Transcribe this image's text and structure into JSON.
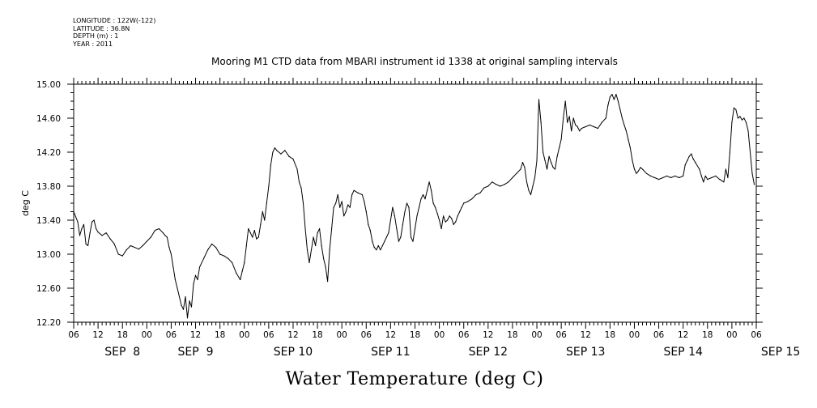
{
  "meta": {
    "longitude": "LONGITUDE : 122W(-122)",
    "latitude": "LATITUDE : 36.8N",
    "depth": "DEPTH (m) : 1",
    "year": "YEAR : 2011"
  },
  "chart_data": {
    "type": "line",
    "title": "Mooring M1 CTD data from MBARI instrument id 1338 at original sampling intervals",
    "xlabel": "Water Temperature (deg C)",
    "ylabel": "deg C",
    "ylim": [
      12.2,
      15.0
    ],
    "yticks": [
      "12.20",
      "12.60",
      "13.00",
      "13.40",
      "13.80",
      "14.20",
      "14.60",
      "15.00"
    ],
    "xlim_hours": [
      0,
      168
    ],
    "x_start_label": "SEP 8 06:00",
    "hour_ticks": [
      "06",
      "12",
      "18",
      "00",
      "06",
      "12",
      "18",
      "00",
      "06",
      "12",
      "18",
      "00",
      "06",
      "12",
      "18",
      "00",
      "06",
      "12",
      "18",
      "00",
      "06",
      "12",
      "18",
      "00",
      "06",
      "12",
      "18",
      "00",
      "06"
    ],
    "day_labels": [
      "SEP  8",
      "SEP  9",
      "SEP 10",
      "SEP 11",
      "SEP 12",
      "SEP 13",
      "SEP 14",
      "SEP 15"
    ],
    "grid": false,
    "series": [
      {
        "color": "#000000",
        "points": [
          [
            0,
            13.5
          ],
          [
            0.5,
            13.44
          ],
          [
            1,
            13.38
          ],
          [
            1.5,
            13.22
          ],
          [
            2,
            13.3
          ],
          [
            2.5,
            13.35
          ],
          [
            3,
            13.12
          ],
          [
            3.5,
            13.1
          ],
          [
            4,
            13.25
          ],
          [
            4.5,
            13.38
          ],
          [
            5,
            13.4
          ],
          [
            5.5,
            13.3
          ],
          [
            6,
            13.26
          ],
          [
            7,
            13.22
          ],
          [
            8,
            13.25
          ],
          [
            9,
            13.18
          ],
          [
            10,
            13.12
          ],
          [
            11,
            13.0
          ],
          [
            12,
            12.98
          ],
          [
            13,
            13.05
          ],
          [
            14,
            13.1
          ],
          [
            15,
            13.08
          ],
          [
            16,
            13.06
          ],
          [
            17,
            13.1
          ],
          [
            18,
            13.15
          ],
          [
            19,
            13.2
          ],
          [
            20,
            13.28
          ],
          [
            21,
            13.3
          ],
          [
            22,
            13.25
          ],
          [
            22.5,
            13.22
          ],
          [
            23,
            13.2
          ],
          [
            23.5,
            13.08
          ],
          [
            24,
            13.0
          ],
          [
            24.5,
            12.85
          ],
          [
            25,
            12.7
          ],
          [
            25.5,
            12.6
          ],
          [
            26,
            12.5
          ],
          [
            26.5,
            12.4
          ],
          [
            27,
            12.35
          ],
          [
            27.5,
            12.5
          ],
          [
            28,
            12.25
          ],
          [
            28.5,
            12.45
          ],
          [
            29,
            12.38
          ],
          [
            29.5,
            12.65
          ],
          [
            30,
            12.75
          ],
          [
            30.5,
            12.7
          ],
          [
            31,
            12.85
          ],
          [
            32,
            12.95
          ],
          [
            33,
            13.05
          ],
          [
            34,
            13.12
          ],
          [
            35,
            13.08
          ],
          [
            36,
            13.0
          ],
          [
            37,
            12.98
          ],
          [
            38,
            12.95
          ],
          [
            39,
            12.9
          ],
          [
            40,
            12.78
          ],
          [
            41,
            12.7
          ],
          [
            41.5,
            12.8
          ],
          [
            42,
            12.9
          ],
          [
            42.5,
            13.1
          ],
          [
            43,
            13.3
          ],
          [
            43.5,
            13.25
          ],
          [
            44,
            13.2
          ],
          [
            44.5,
            13.28
          ],
          [
            45,
            13.18
          ],
          [
            45.5,
            13.2
          ],
          [
            46,
            13.35
          ],
          [
            46.5,
            13.5
          ],
          [
            47,
            13.4
          ],
          [
            47.5,
            13.6
          ],
          [
            48,
            13.8
          ],
          [
            48.5,
            14.05
          ],
          [
            49,
            14.2
          ],
          [
            49.5,
            14.25
          ],
          [
            50,
            14.22
          ],
          [
            51,
            14.18
          ],
          [
            52,
            14.22
          ],
          [
            53,
            14.15
          ],
          [
            54,
            14.12
          ],
          [
            55,
            14.0
          ],
          [
            55.5,
            13.85
          ],
          [
            56,
            13.78
          ],
          [
            56.5,
            13.6
          ],
          [
            57,
            13.3
          ],
          [
            57.5,
            13.05
          ],
          [
            58,
            12.9
          ],
          [
            58.5,
            13.05
          ],
          [
            59,
            13.2
          ],
          [
            59.5,
            13.1
          ],
          [
            60,
            13.25
          ],
          [
            60.5,
            13.3
          ],
          [
            61,
            13.1
          ],
          [
            61.5,
            12.95
          ],
          [
            62,
            12.85
          ],
          [
            62.5,
            12.68
          ],
          [
            63,
            13.05
          ],
          [
            63.5,
            13.3
          ],
          [
            64,
            13.55
          ],
          [
            64.5,
            13.6
          ],
          [
            65,
            13.7
          ],
          [
            65.5,
            13.55
          ],
          [
            66,
            13.62
          ],
          [
            66.5,
            13.45
          ],
          [
            67,
            13.5
          ],
          [
            67.5,
            13.58
          ],
          [
            68,
            13.55
          ],
          [
            68.5,
            13.7
          ],
          [
            69,
            13.75
          ],
          [
            70,
            13.72
          ],
          [
            71,
            13.7
          ],
          [
            71.5,
            13.62
          ],
          [
            72,
            13.5
          ],
          [
            72.5,
            13.35
          ],
          [
            73,
            13.28
          ],
          [
            73.5,
            13.15
          ],
          [
            74,
            13.08
          ],
          [
            74.5,
            13.05
          ],
          [
            75,
            13.1
          ],
          [
            75.5,
            13.05
          ],
          [
            76,
            13.1
          ],
          [
            76.5,
            13.15
          ],
          [
            77,
            13.2
          ],
          [
            77.5,
            13.25
          ],
          [
            78,
            13.4
          ],
          [
            78.5,
            13.55
          ],
          [
            79,
            13.45
          ],
          [
            79.5,
            13.3
          ],
          [
            80,
            13.15
          ],
          [
            80.5,
            13.2
          ],
          [
            81,
            13.35
          ],
          [
            81.5,
            13.5
          ],
          [
            82,
            13.6
          ],
          [
            82.5,
            13.55
          ],
          [
            83,
            13.2
          ],
          [
            83.5,
            13.15
          ],
          [
            84,
            13.3
          ],
          [
            84.5,
            13.45
          ],
          [
            85,
            13.55
          ],
          [
            85.5,
            13.65
          ],
          [
            86,
            13.7
          ],
          [
            86.5,
            13.65
          ],
          [
            87,
            13.75
          ],
          [
            87.5,
            13.85
          ],
          [
            88,
            13.75
          ],
          [
            88.5,
            13.6
          ],
          [
            89,
            13.55
          ],
          [
            89.5,
            13.48
          ],
          [
            90,
            13.4
          ],
          [
            90.5,
            13.3
          ],
          [
            91,
            13.45
          ],
          [
            91.5,
            13.38
          ],
          [
            92,
            13.4
          ],
          [
            92.5,
            13.45
          ],
          [
            93,
            13.42
          ],
          [
            93.5,
            13.35
          ],
          [
            94,
            13.38
          ],
          [
            94.5,
            13.45
          ],
          [
            95,
            13.5
          ],
          [
            95.5,
            13.55
          ],
          [
            96,
            13.6
          ],
          [
            97,
            13.62
          ],
          [
            98,
            13.65
          ],
          [
            99,
            13.7
          ],
          [
            100,
            13.72
          ],
          [
            101,
            13.78
          ],
          [
            102,
            13.8
          ],
          [
            103,
            13.85
          ],
          [
            104,
            13.82
          ],
          [
            105,
            13.8
          ],
          [
            106,
            13.82
          ],
          [
            107,
            13.85
          ],
          [
            108,
            13.9
          ],
          [
            109,
            13.95
          ],
          [
            110,
            14.0
          ],
          [
            110.5,
            14.08
          ],
          [
            111,
            14.02
          ],
          [
            111.5,
            13.85
          ],
          [
            112,
            13.75
          ],
          [
            112.5,
            13.7
          ],
          [
            113,
            13.8
          ],
          [
            113.5,
            13.9
          ],
          [
            114,
            14.1
          ],
          [
            114.5,
            14.82
          ],
          [
            115,
            14.55
          ],
          [
            115.5,
            14.2
          ],
          [
            116,
            14.1
          ],
          [
            116.5,
            14.0
          ],
          [
            117,
            14.15
          ],
          [
            117.5,
            14.08
          ],
          [
            118,
            14.02
          ],
          [
            118.5,
            14.0
          ],
          [
            119,
            14.15
          ],
          [
            119.5,
            14.25
          ],
          [
            120,
            14.35
          ],
          [
            120.5,
            14.6
          ],
          [
            121,
            14.8
          ],
          [
            121.5,
            14.55
          ],
          [
            122,
            14.62
          ],
          [
            122.5,
            14.45
          ],
          [
            123,
            14.6
          ],
          [
            123.5,
            14.52
          ],
          [
            124,
            14.5
          ],
          [
            124.5,
            14.45
          ],
          [
            125,
            14.48
          ],
          [
            126,
            14.5
          ],
          [
            127,
            14.52
          ],
          [
            128,
            14.5
          ],
          [
            129,
            14.48
          ],
          [
            130,
            14.55
          ],
          [
            131,
            14.6
          ],
          [
            131.5,
            14.75
          ],
          [
            132,
            14.85
          ],
          [
            132.5,
            14.88
          ],
          [
            133,
            14.82
          ],
          [
            133.5,
            14.88
          ],
          [
            134,
            14.8
          ],
          [
            134.5,
            14.7
          ],
          [
            135,
            14.6
          ],
          [
            135.5,
            14.52
          ],
          [
            136,
            14.45
          ],
          [
            136.5,
            14.35
          ],
          [
            137,
            14.25
          ],
          [
            137.5,
            14.1
          ],
          [
            138,
            14.0
          ],
          [
            138.5,
            13.95
          ],
          [
            139,
            13.98
          ],
          [
            139.5,
            14.02
          ],
          [
            140,
            14.0
          ],
          [
            141,
            13.95
          ],
          [
            142,
            13.92
          ],
          [
            143,
            13.9
          ],
          [
            144,
            13.88
          ],
          [
            145,
            13.9
          ],
          [
            146,
            13.92
          ],
          [
            147,
            13.9
          ],
          [
            148,
            13.92
          ],
          [
            149,
            13.9
          ],
          [
            150,
            13.92
          ],
          [
            150.5,
            14.05
          ],
          [
            151,
            14.1
          ],
          [
            151.5,
            14.15
          ],
          [
            152,
            14.18
          ],
          [
            152.5,
            14.12
          ],
          [
            153,
            14.08
          ],
          [
            154,
            14.0
          ],
          [
            154.5,
            13.92
          ],
          [
            155,
            13.85
          ],
          [
            155.5,
            13.92
          ],
          [
            156,
            13.88
          ],
          [
            157,
            13.9
          ],
          [
            158,
            13.92
          ],
          [
            159,
            13.88
          ],
          [
            160,
            13.85
          ],
          [
            160.5,
            14.0
          ],
          [
            161,
            13.9
          ],
          [
            161.5,
            14.2
          ],
          [
            162,
            14.55
          ],
          [
            162.5,
            14.72
          ],
          [
            163,
            14.7
          ],
          [
            163.5,
            14.6
          ],
          [
            164,
            14.62
          ],
          [
            164.5,
            14.58
          ],
          [
            165,
            14.6
          ],
          [
            165.5,
            14.55
          ],
          [
            166,
            14.45
          ],
          [
            166.5,
            14.2
          ],
          [
            167,
            13.95
          ],
          [
            167.5,
            13.82
          ]
        ]
      }
    ]
  }
}
